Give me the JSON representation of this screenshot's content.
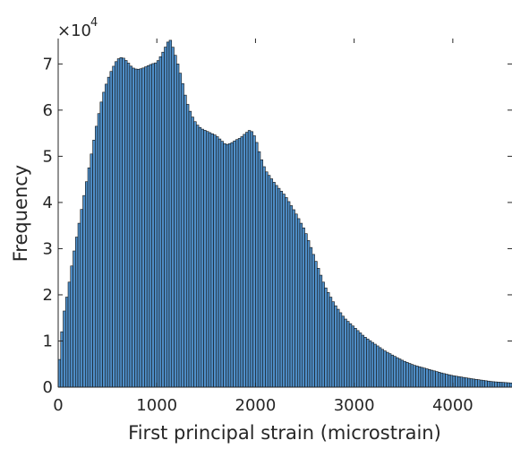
{
  "chart_data": {
    "type": "bar",
    "title": "",
    "xlabel": "First principal strain (microstrain)",
    "ylabel": "Frequency",
    "y_exponent_base": "×10",
    "y_exponent": "4",
    "xlim": [
      0,
      4600
    ],
    "ylim": [
      0,
      75500
    ],
    "y_scale_factor": 10000,
    "xticks": [
      0,
      1000,
      2000,
      3000,
      4000
    ],
    "xtick_labels": [
      "0",
      "1000",
      "2000",
      "3000",
      "4000"
    ],
    "yticks": [
      0,
      10000,
      20000,
      30000,
      40000,
      50000,
      60000,
      70000
    ],
    "ytick_labels": [
      "0",
      "1",
      "2",
      "3",
      "4",
      "5",
      "6",
      "7"
    ],
    "grid": false,
    "bar_color": "#4f8fc9",
    "edge_color": "#111111",
    "bin_width": 25,
    "profile": [
      [
        0,
        3000
      ],
      [
        25,
        9000
      ],
      [
        50,
        15000
      ],
      [
        100,
        21000
      ],
      [
        150,
        28000
      ],
      [
        200,
        34000
      ],
      [
        250,
        40000
      ],
      [
        300,
        46000
      ],
      [
        350,
        52000
      ],
      [
        400,
        58000
      ],
      [
        450,
        63000
      ],
      [
        500,
        66500
      ],
      [
        550,
        69000
      ],
      [
        600,
        71000
      ],
      [
        650,
        71500
      ],
      [
        700,
        70500
      ],
      [
        750,
        69200
      ],
      [
        800,
        68800
      ],
      [
        850,
        69000
      ],
      [
        900,
        69500
      ],
      [
        950,
        70000
      ],
      [
        1000,
        70300
      ],
      [
        1050,
        72000
      ],
      [
        1100,
        74200
      ],
      [
        1130,
        75500
      ],
      [
        1150,
        74500
      ],
      [
        1200,
        71000
      ],
      [
        1250,
        67000
      ],
      [
        1300,
        62000
      ],
      [
        1350,
        59000
      ],
      [
        1400,
        57000
      ],
      [
        1450,
        56000
      ],
      [
        1500,
        55500
      ],
      [
        1550,
        55000
      ],
      [
        1600,
        54500
      ],
      [
        1650,
        53500
      ],
      [
        1700,
        52500
      ],
      [
        1750,
        52800
      ],
      [
        1800,
        53500
      ],
      [
        1850,
        54000
      ],
      [
        1900,
        55000
      ],
      [
        1950,
        55800
      ],
      [
        2000,
        54000
      ],
      [
        2050,
        50000
      ],
      [
        2100,
        47000
      ],
      [
        2150,
        45500
      ],
      [
        2200,
        44000
      ],
      [
        2300,
        41500
      ],
      [
        2400,
        38000
      ],
      [
        2500,
        34000
      ],
      [
        2600,
        28000
      ],
      [
        2700,
        22000
      ],
      [
        2800,
        18000
      ],
      [
        2900,
        15000
      ],
      [
        3000,
        13000
      ],
      [
        3100,
        11000
      ],
      [
        3200,
        9500
      ],
      [
        3300,
        8000
      ],
      [
        3400,
        6800
      ],
      [
        3500,
        5700
      ],
      [
        3600,
        4800
      ],
      [
        3700,
        4200
      ],
      [
        3800,
        3600
      ],
      [
        3900,
        3000
      ],
      [
        4000,
        2500
      ],
      [
        4200,
        1800
      ],
      [
        4400,
        1200
      ],
      [
        4600,
        900
      ]
    ]
  }
}
